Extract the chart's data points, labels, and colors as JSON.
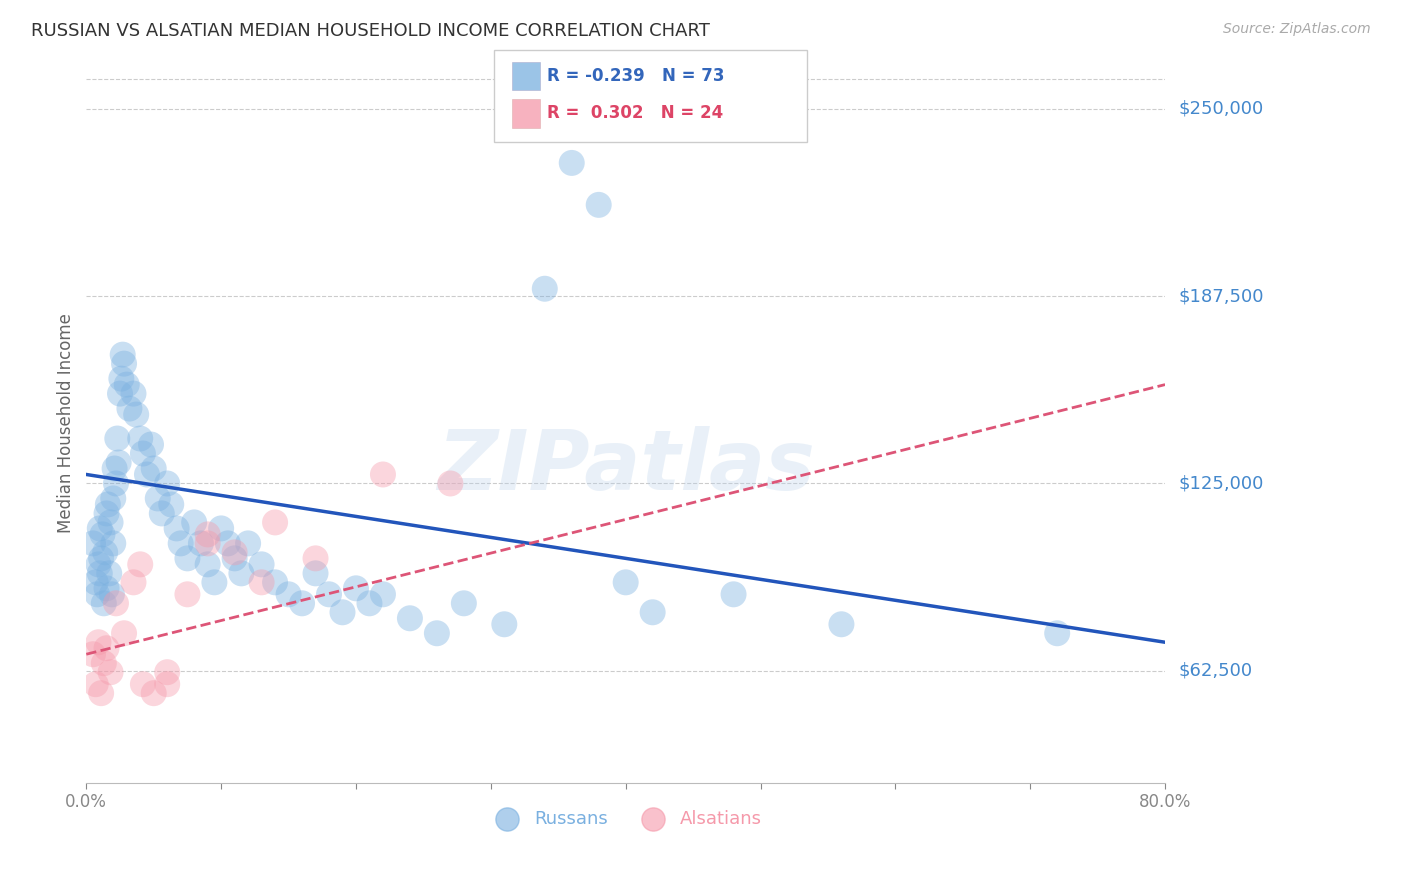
{
  "title": "RUSSIAN VS ALSATIAN MEDIAN HOUSEHOLD INCOME CORRELATION CHART",
  "source": "Source: ZipAtlas.com",
  "ylabel": "Median Household Income",
  "ytick_labels": [
    "$62,500",
    "$125,000",
    "$187,500",
    "$250,000"
  ],
  "ytick_values": [
    62500,
    125000,
    187500,
    250000
  ],
  "ymin": 25000,
  "ymax": 265000,
  "xmin": 0.0,
  "xmax": 0.8,
  "watermark": "ZIPatlas",
  "background_color": "#ffffff",
  "grid_color": "#cccccc",
  "blue_color": "#7ab0e0",
  "pink_color": "#f599aa",
  "blue_line_color": "#2255bb",
  "pink_line_color": "#dd5577",
  "russians_x": [
    0.005,
    0.007,
    0.008,
    0.009,
    0.01,
    0.01,
    0.011,
    0.012,
    0.013,
    0.014,
    0.015,
    0.015,
    0.016,
    0.017,
    0.018,
    0.019,
    0.02,
    0.02,
    0.021,
    0.022,
    0.023,
    0.024,
    0.025,
    0.026,
    0.027,
    0.028,
    0.03,
    0.032,
    0.035,
    0.037,
    0.04,
    0.042,
    0.045,
    0.048,
    0.05,
    0.053,
    0.056,
    0.06,
    0.063,
    0.067,
    0.07,
    0.075,
    0.08,
    0.085,
    0.09,
    0.095,
    0.1,
    0.105,
    0.11,
    0.115,
    0.12,
    0.13,
    0.14,
    0.15,
    0.16,
    0.17,
    0.18,
    0.19,
    0.2,
    0.21,
    0.22,
    0.24,
    0.26,
    0.28,
    0.31,
    0.34,
    0.36,
    0.38,
    0.4,
    0.42,
    0.48,
    0.56,
    0.72
  ],
  "russians_y": [
    105000,
    92000,
    88000,
    98000,
    110000,
    95000,
    100000,
    108000,
    85000,
    102000,
    115000,
    90000,
    118000,
    95000,
    112000,
    88000,
    120000,
    105000,
    130000,
    125000,
    140000,
    132000,
    155000,
    160000,
    168000,
    165000,
    158000,
    150000,
    155000,
    148000,
    140000,
    135000,
    128000,
    138000,
    130000,
    120000,
    115000,
    125000,
    118000,
    110000,
    105000,
    100000,
    112000,
    105000,
    98000,
    92000,
    110000,
    105000,
    100000,
    95000,
    105000,
    98000,
    92000,
    88000,
    85000,
    95000,
    88000,
    82000,
    90000,
    85000,
    88000,
    80000,
    75000,
    85000,
    78000,
    190000,
    232000,
    218000,
    92000,
    82000,
    88000,
    78000,
    75000
  ],
  "alsatians_x": [
    0.005,
    0.007,
    0.009,
    0.011,
    0.013,
    0.015,
    0.018,
    0.022,
    0.028,
    0.035,
    0.042,
    0.05,
    0.06,
    0.075,
    0.09,
    0.11,
    0.14,
    0.17,
    0.22,
    0.27,
    0.04,
    0.06,
    0.09,
    0.13
  ],
  "alsatians_y": [
    68000,
    58000,
    72000,
    55000,
    65000,
    70000,
    62000,
    85000,
    75000,
    92000,
    58000,
    55000,
    62000,
    88000,
    108000,
    102000,
    112000,
    100000,
    128000,
    125000,
    98000,
    58000,
    105000,
    92000
  ],
  "blue_trend_x": [
    0.0,
    0.8
  ],
  "blue_trend_y": [
    128000,
    72000
  ],
  "pink_trend_x": [
    0.0,
    0.8
  ],
  "pink_trend_y": [
    68000,
    158000
  ]
}
